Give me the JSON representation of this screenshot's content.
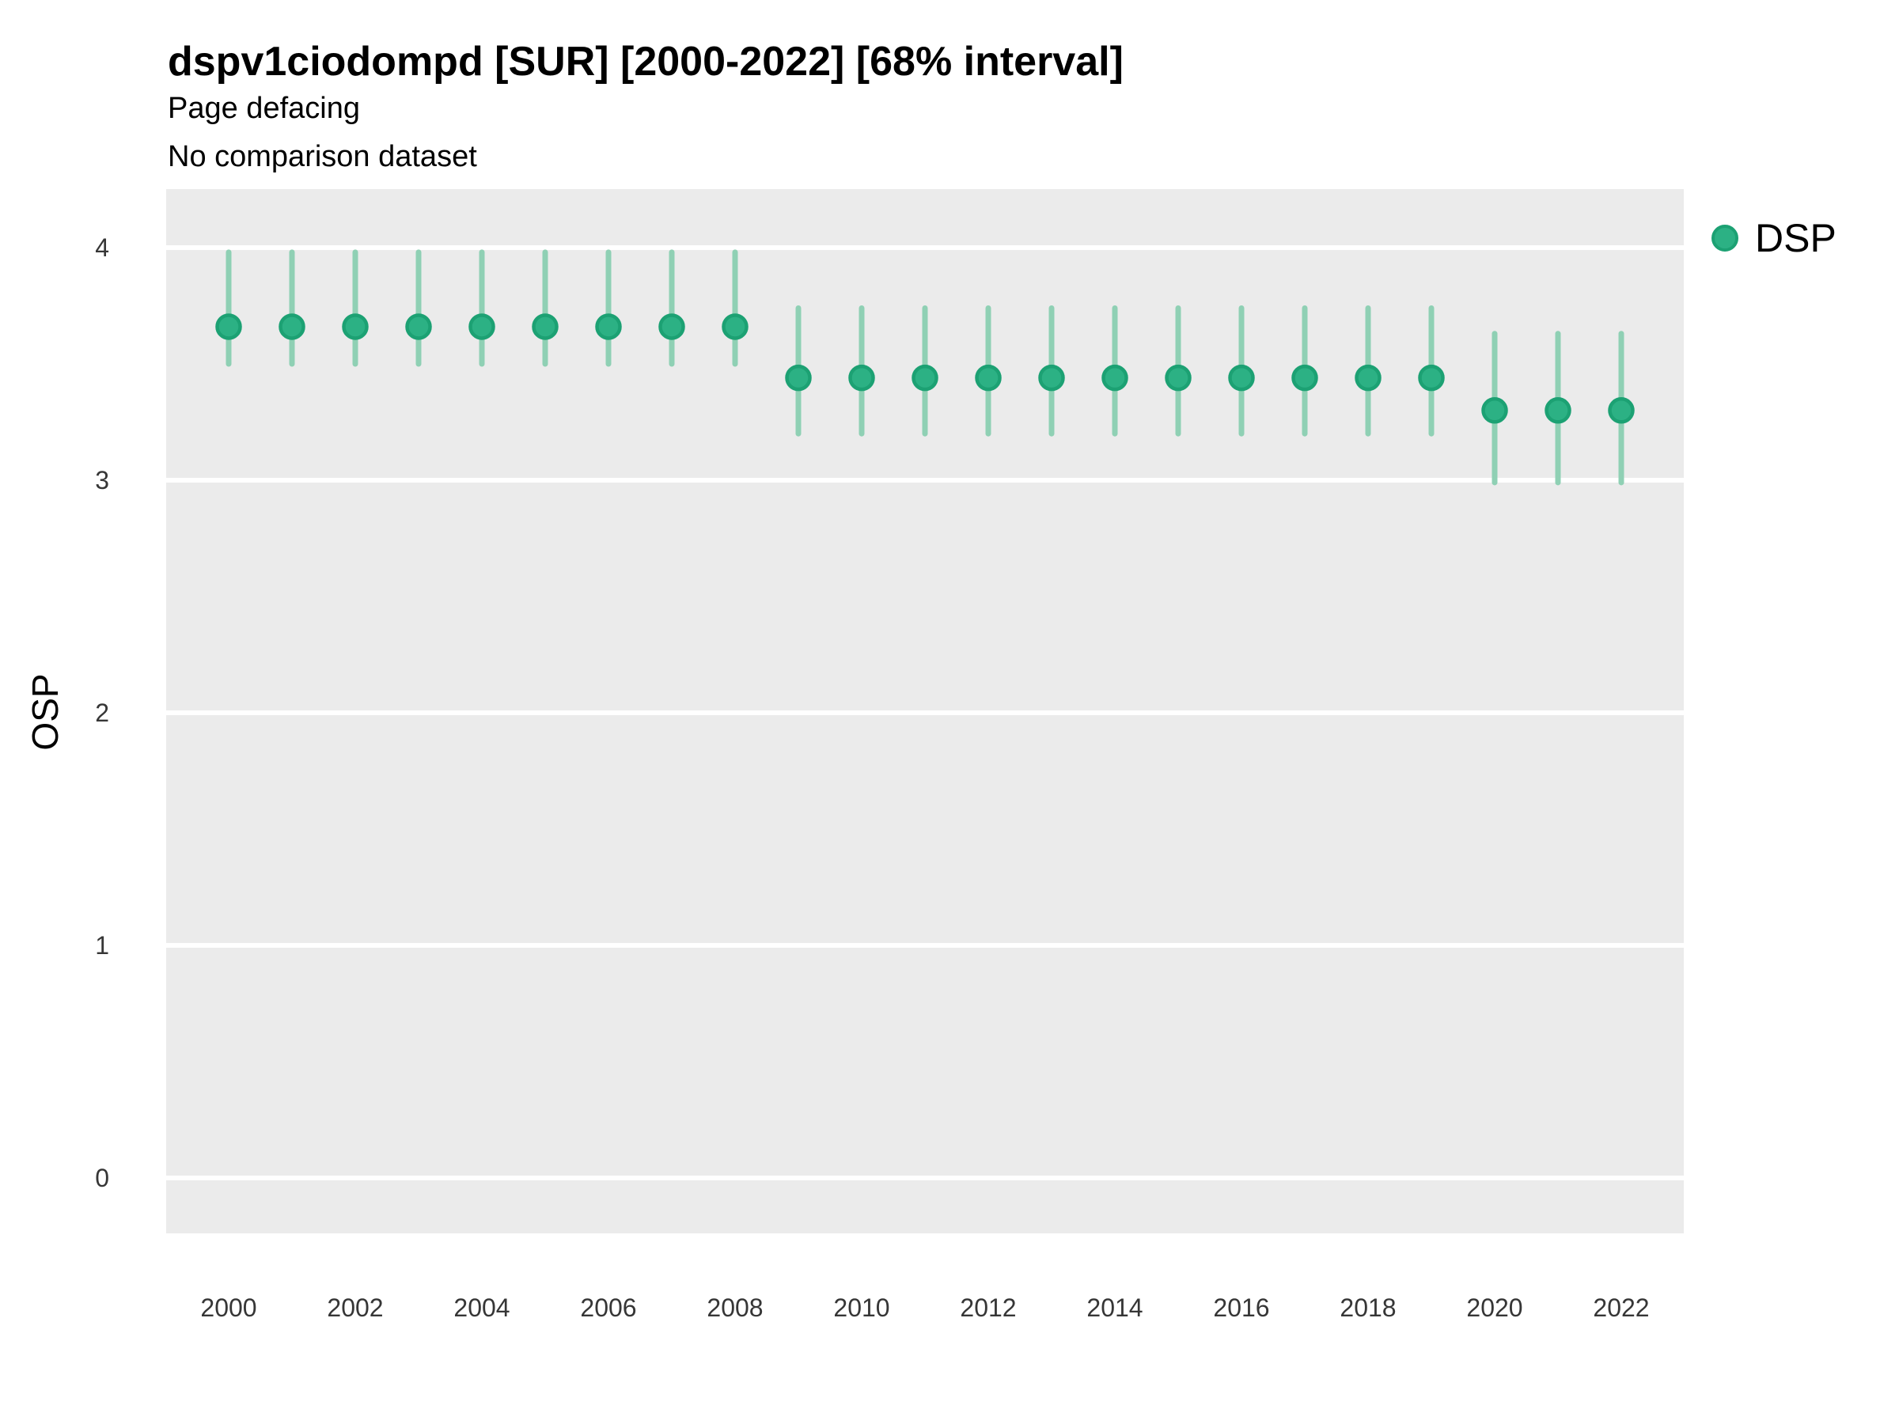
{
  "header": {
    "title": "dspv1ciodompd [SUR] [2000-2022] [68% interval]",
    "subtitle": "Page defacing",
    "note": "No comparison dataset"
  },
  "y_axis": {
    "title": "OSP"
  },
  "legend": {
    "items": [
      {
        "label": "DSP"
      }
    ]
  },
  "colors": {
    "plot_background": "#EBEBEB",
    "gridline": "#FFFFFF",
    "interval": "#8FD0B4",
    "point": "#2CB184",
    "point_border": "#1CA173",
    "text": "#000000",
    "tick_text": "#363636"
  },
  "chart_data": {
    "type": "pointrange",
    "title": "dspv1ciodompd [SUR] [2000-2022] [68% interval]",
    "subtitle": "Page defacing",
    "note": "No comparison dataset",
    "interval": "68%",
    "xlabel": "",
    "ylabel": "OSP",
    "ylim": [
      -0.25,
      4.25
    ],
    "y_ticks": [
      0,
      1,
      2,
      3,
      4
    ],
    "x": [
      2000,
      2001,
      2002,
      2003,
      2004,
      2005,
      2006,
      2007,
      2008,
      2009,
      2010,
      2011,
      2012,
      2013,
      2014,
      2015,
      2016,
      2017,
      2018,
      2019,
      2020,
      2021,
      2022
    ],
    "x_tick_labels": [
      2000,
      2002,
      2004,
      2006,
      2008,
      2010,
      2012,
      2014,
      2016,
      2018,
      2020,
      2022
    ],
    "grid": "horizontal-major-only",
    "legend_position": "right-top",
    "series": [
      {
        "name": "DSP",
        "mid": [
          3.66,
          3.66,
          3.66,
          3.66,
          3.66,
          3.66,
          3.66,
          3.66,
          3.66,
          3.44,
          3.44,
          3.44,
          3.44,
          3.44,
          3.44,
          3.44,
          3.44,
          3.44,
          3.44,
          3.44,
          3.3,
          3.3,
          3.3
        ],
        "lo": [
          3.5,
          3.5,
          3.5,
          3.5,
          3.5,
          3.5,
          3.5,
          3.5,
          3.5,
          3.2,
          3.2,
          3.2,
          3.2,
          3.2,
          3.2,
          3.2,
          3.2,
          3.2,
          3.2,
          3.2,
          2.99,
          2.99,
          2.99
        ],
        "hi": [
          3.98,
          3.98,
          3.98,
          3.98,
          3.98,
          3.98,
          3.98,
          3.98,
          3.98,
          3.74,
          3.74,
          3.74,
          3.74,
          3.74,
          3.74,
          3.74,
          3.74,
          3.74,
          3.74,
          3.74,
          3.63,
          3.63,
          3.63
        ]
      }
    ]
  }
}
